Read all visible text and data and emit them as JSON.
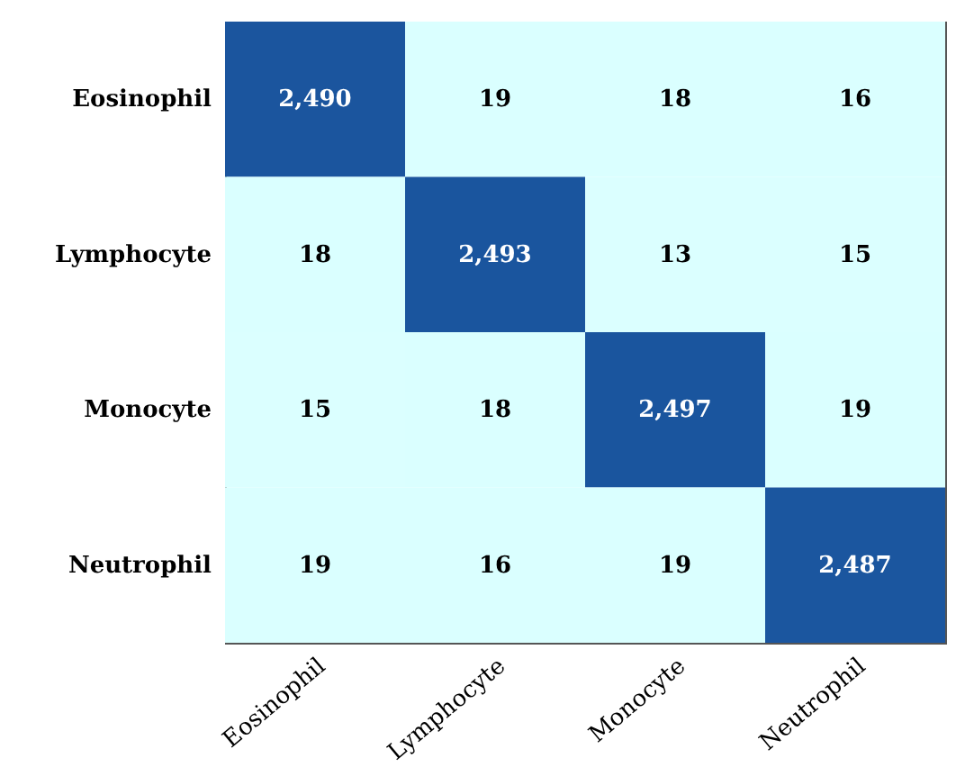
{
  "chart_data": {
    "type": "heatmap",
    "categories": [
      "Eosinophil",
      "Lymphocyte",
      "Monocyte",
      "Neutrophil"
    ],
    "y_categories": [
      "Eosinophil",
      "Lymphocyte",
      "Monocyte",
      "Neutrophil"
    ],
    "cells": [
      [
        2490,
        19,
        18,
        16
      ],
      [
        18,
        2493,
        13,
        15
      ],
      [
        15,
        18,
        2497,
        19
      ],
      [
        19,
        16,
        19,
        2487
      ]
    ],
    "cell_labels": [
      [
        "2,490",
        "19",
        "18",
        "16"
      ],
      [
        "18",
        "2,493",
        "13",
        "15"
      ],
      [
        "15",
        "18",
        "2,497",
        "19"
      ],
      [
        "19",
        "16",
        "19",
        "2,487"
      ]
    ],
    "color": "#1a559e"
  }
}
